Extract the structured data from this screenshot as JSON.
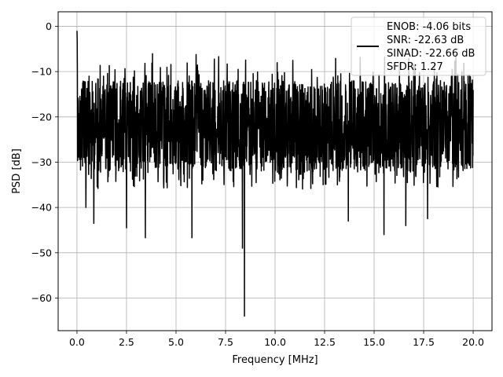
{
  "chart_data": {
    "type": "line",
    "title": "",
    "xlabel": "Frequency [MHz]",
    "ylabel": "PSD [dB]",
    "xlim": [
      -0.95,
      20.95
    ],
    "ylim": [
      -67.2,
      3.2
    ],
    "xticks": [
      0.0,
      2.5,
      5.0,
      7.5,
      10.0,
      12.5,
      15.0,
      17.5,
      20.0
    ],
    "xtick_labels": [
      "0.0",
      "2.5",
      "5.0",
      "7.5",
      "10.0",
      "12.5",
      "15.0",
      "17.5",
      "20.0"
    ],
    "yticks": [
      0,
      -10,
      -20,
      -30,
      -40,
      -50,
      -60
    ],
    "ytick_labels": [
      "0",
      "−10",
      "−20",
      "−30",
      "−40",
      "−50",
      "−60"
    ],
    "grid": true,
    "legend": {
      "placement": "top-right",
      "entries": [
        "ENOB: -4.06 bits",
        "SNR: -22.63 dB",
        "SINAD: -22.66 dB",
        "SFDR: 1.27"
      ]
    },
    "series": [
      {
        "color": "#000000",
        "x_range": [
          0,
          20
        ],
        "points": 2000,
        "band_upper_db": -10,
        "band_mid_db": -19,
        "band_lower_db": -28,
        "start_db": -1,
        "spikes": [
          {
            "x": 0.45,
            "y": -40
          },
          {
            "x": 0.85,
            "y": -43.5
          },
          {
            "x": 2.5,
            "y": -44.5
          },
          {
            "x": 3.45,
            "y": -46.7
          },
          {
            "x": 5.8,
            "y": -46.7
          },
          {
            "x": 8.35,
            "y": -49
          },
          {
            "x": 8.45,
            "y": -64
          },
          {
            "x": 13.7,
            "y": -43
          },
          {
            "x": 15.5,
            "y": -46
          },
          {
            "x": 16.6,
            "y": -44
          },
          {
            "x": 17.7,
            "y": -42.5
          }
        ]
      }
    ]
  }
}
